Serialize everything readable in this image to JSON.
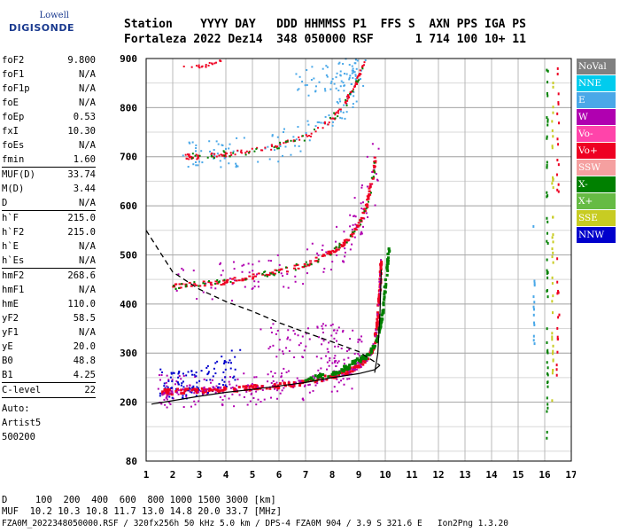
{
  "logo": {
    "line1": "Lowell",
    "line2": "DIGISONDE"
  },
  "header": {
    "labels": "Station    YYYY DAY   DDD HHMMSS P1  FFS S  AXN PPS IGA PS",
    "values": "Fortaleza 2022 Dez14  348 050000 RSF      1 714 100 10+ 11"
  },
  "params": [
    [
      {
        "label": "foF2",
        "value": "9.800"
      },
      {
        "label": "foF1",
        "value": "N/A"
      },
      {
        "label": "foF1p",
        "value": "N/A"
      },
      {
        "label": "foE",
        "value": "N/A"
      },
      {
        "label": "foEp",
        "value": "0.53"
      },
      {
        "label": "fxI",
        "value": "10.30"
      },
      {
        "label": "foEs",
        "value": "N/A"
      },
      {
        "label": "fmin",
        "value": "1.60"
      }
    ],
    [
      {
        "label": "MUF(D)",
        "value": "33.74"
      },
      {
        "label": "M(D)",
        "value": "3.44"
      },
      {
        "label": "D",
        "value": "N/A"
      }
    ],
    [
      {
        "label": "h`F",
        "value": "215.0"
      },
      {
        "label": "h`F2",
        "value": "215.0"
      },
      {
        "label": "h`E",
        "value": "N/A"
      },
      {
        "label": "h`Es",
        "value": "N/A"
      }
    ],
    [
      {
        "label": "hmF2",
        "value": "268.6"
      },
      {
        "label": "hmF1",
        "value": "N/A"
      },
      {
        "label": "hmE",
        "value": "110.0"
      },
      {
        "label": "yF2",
        "value": "58.5"
      },
      {
        "label": "yF1",
        "value": "N/A"
      },
      {
        "label": "yE",
        "value": "20.0"
      },
      {
        "label": "B0",
        "value": "48.8"
      },
      {
        "label": "B1",
        "value": "4.25"
      }
    ],
    [
      {
        "label": "C-level",
        "value": "22"
      }
    ]
  ],
  "extra": [
    "Auto:",
    "Artist5",
    "500200"
  ],
  "legend": [
    {
      "label": "NoVal",
      "color": "#808080"
    },
    {
      "label": "NNE",
      "color": "#00ccee"
    },
    {
      "label": "E",
      "color": "#4aa8e8"
    },
    {
      "label": "W",
      "color": "#b000b0"
    },
    {
      "label": "Vo-",
      "color": "#ff44aa"
    },
    {
      "label": "Vo+",
      "color": "#ee0022"
    },
    {
      "label": "SSW",
      "color": "#f5a0a0"
    },
    {
      "label": "X-",
      "color": "#008000"
    },
    {
      "label": "X+",
      "color": "#66bb44"
    },
    {
      "label": "SSE",
      "color": "#c8cc22"
    },
    {
      "label": "NNW",
      "color": "#0000cc"
    }
  ],
  "footer": {
    "line1": "D     100  200  400  600  800 1000 1500 3000 [km]",
    "line2": "MUF  10.2 10.3 10.8 11.7 13.0 14.8 20.0 33.7 [MHz]",
    "line3": "FZA0M_2022348050000.RSF / 320fx256h 50 kHz 5.0 km / DPS-4 FZA0M 904 / 3.9 S 321.6 E   Ion2Png 1.3.20"
  },
  "chart_data": {
    "type": "scatter",
    "xlim": [
      1,
      17
    ],
    "ylim": [
      80,
      900
    ],
    "xticks": [
      "1",
      "2",
      "3",
      "4",
      "5",
      "6",
      "7",
      "8",
      "9",
      "10",
      "11",
      "12",
      "13",
      "14",
      "15",
      "16",
      "17"
    ],
    "yticks": [
      {
        "value": 80,
        "label": "80"
      },
      {
        "value": 200,
        "label": "200"
      },
      {
        "value": 300,
        "label": "300"
      },
      {
        "value": 400,
        "label": "400"
      },
      {
        "value": 500,
        "label": "500"
      },
      {
        "value": 600,
        "label": "600"
      },
      {
        "value": 700,
        "label": "700"
      },
      {
        "value": 800,
        "label": "800"
      },
      {
        "value": 900,
        "label": "900"
      }
    ],
    "profile_curve": [
      [
        1.0,
        550
      ],
      [
        2.0,
        465
      ],
      [
        3.0,
        430
      ],
      [
        4.0,
        405
      ],
      [
        5.0,
        385
      ],
      [
        6.0,
        362
      ],
      [
        7.0,
        342
      ],
      [
        8.0,
        323
      ],
      [
        9.0,
        303
      ],
      [
        9.8,
        275
      ]
    ],
    "bottom_curve": [
      [
        1.2,
        196
      ],
      [
        2.0,
        203
      ],
      [
        3.0,
        212
      ],
      [
        4.0,
        220
      ],
      [
        5.0,
        226
      ],
      [
        6.0,
        233
      ],
      [
        7.0,
        240
      ],
      [
        8.0,
        250
      ],
      [
        9.0,
        258
      ],
      [
        9.6,
        266
      ],
      [
        9.8,
        275
      ]
    ],
    "o_trace": [
      [
        1.6,
        222
      ],
      [
        2.0,
        221
      ],
      [
        3.0,
        223
      ],
      [
        4.0,
        226
      ],
      [
        5.0,
        229
      ],
      [
        6.0,
        233
      ],
      [
        7.0,
        240
      ],
      [
        8.0,
        252
      ],
      [
        8.6,
        262
      ],
      [
        9.0,
        275
      ],
      [
        9.4,
        292
      ],
      [
        9.6,
        320
      ],
      [
        9.72,
        370
      ],
      [
        9.8,
        440
      ],
      [
        9.85,
        490
      ]
    ],
    "x_trace": [
      [
        7.0,
        245
      ],
      [
        8.0,
        258
      ],
      [
        8.6,
        272
      ],
      [
        9.0,
        285
      ],
      [
        9.4,
        298
      ],
      [
        9.7,
        325
      ],
      [
        9.9,
        380
      ],
      [
        10.05,
        460
      ],
      [
        10.15,
        515
      ]
    ],
    "multihop_2": [
      [
        2.0,
        435
      ],
      [
        3.0,
        440
      ],
      [
        4.0,
        445
      ],
      [
        5.0,
        455
      ],
      [
        6.0,
        465
      ],
      [
        7.0,
        480
      ],
      [
        8.0,
        505
      ],
      [
        8.6,
        530
      ],
      [
        9.0,
        560
      ],
      [
        9.3,
        600
      ],
      [
        9.5,
        650
      ],
      [
        9.65,
        700
      ]
    ],
    "multihop_3": [
      [
        2.5,
        700
      ],
      [
        3.0,
        700
      ],
      [
        4.0,
        705
      ],
      [
        5.0,
        712
      ],
      [
        6.0,
        722
      ],
      [
        7.0,
        740
      ],
      [
        8.0,
        775
      ],
      [
        8.5,
        810
      ],
      [
        8.9,
        850
      ],
      [
        9.2,
        890
      ]
    ],
    "trace_color": "#ee0022",
    "x_trace_color": "#008000",
    "spread_color": "#b000b0",
    "scatter_color": "#4aa8e8",
    "low_color": "#0000cc"
  }
}
